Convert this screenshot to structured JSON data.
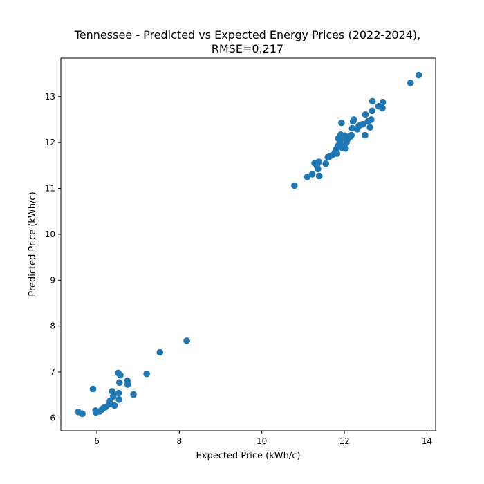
{
  "chart_data": {
    "type": "scatter",
    "title_line1": "Tennessee - Predicted vs Expected Energy Prices (2022-2024),",
    "title_line2": "RMSE=0.217",
    "xlabel": "Expected Price (kWh/c)",
    "ylabel": "Predicted Price (kWh/c)",
    "xlim": [
      5.13,
      14.21
    ],
    "ylim": [
      5.72,
      13.84
    ],
    "xticks": [
      6,
      8,
      10,
      12,
      14
    ],
    "yticks": [
      6,
      7,
      8,
      9,
      10,
      11,
      12,
      13
    ],
    "grid": false,
    "color": "#1f77b4",
    "points": [
      [
        5.55,
        6.13
      ],
      [
        5.65,
        6.09
      ],
      [
        5.91,
        6.63
      ],
      [
        5.97,
        6.16
      ],
      [
        5.98,
        6.12
      ],
      [
        6.07,
        6.14
      ],
      [
        6.12,
        6.18
      ],
      [
        6.17,
        6.22
      ],
      [
        6.22,
        6.24
      ],
      [
        6.3,
        6.3
      ],
      [
        6.32,
        6.37
      ],
      [
        6.37,
        6.58
      ],
      [
        6.4,
        6.47
      ],
      [
        6.43,
        6.27
      ],
      [
        6.52,
        6.98
      ],
      [
        6.53,
        6.54
      ],
      [
        6.54,
        6.4
      ],
      [
        6.55,
        6.77
      ],
      [
        6.57,
        6.93
      ],
      [
        6.74,
        6.81
      ],
      [
        6.75,
        6.73
      ],
      [
        6.89,
        6.51
      ],
      [
        7.21,
        6.96
      ],
      [
        7.53,
        7.43
      ],
      [
        8.18,
        7.68
      ],
      [
        10.79,
        11.06
      ],
      [
        11.1,
        11.25
      ],
      [
        11.22,
        11.31
      ],
      [
        11.28,
        11.55
      ],
      [
        11.34,
        11.49
      ],
      [
        11.36,
        11.42
      ],
      [
        11.38,
        11.58
      ],
      [
        11.39,
        11.27
      ],
      [
        11.55,
        11.54
      ],
      [
        11.6,
        11.68
      ],
      [
        11.63,
        11.69
      ],
      [
        11.7,
        11.72
      ],
      [
        11.77,
        11.78
      ],
      [
        11.8,
        11.85
      ],
      [
        11.82,
        11.76
      ],
      [
        11.84,
        11.92
      ],
      [
        11.85,
        12.09
      ],
      [
        11.88,
        11.97
      ],
      [
        11.89,
        12.02
      ],
      [
        11.91,
        12.17
      ],
      [
        11.93,
        12.43
      ],
      [
        11.95,
        11.88
      ],
      [
        11.97,
        12.1
      ],
      [
        11.99,
        11.92
      ],
      [
        12.01,
        12.15
      ],
      [
        12.03,
        11.87
      ],
      [
        12.05,
        12.0
      ],
      [
        12.07,
        12.06
      ],
      [
        12.1,
        12.1
      ],
      [
        12.14,
        12.13
      ],
      [
        12.17,
        12.16
      ],
      [
        12.19,
        12.31
      ],
      [
        12.21,
        12.46
      ],
      [
        12.23,
        12.5
      ],
      [
        12.31,
        12.29
      ],
      [
        12.35,
        12.36
      ],
      [
        12.4,
        12.39
      ],
      [
        12.45,
        12.4
      ],
      [
        12.5,
        12.16
      ],
      [
        12.51,
        12.61
      ],
      [
        12.57,
        12.46
      ],
      [
        12.62,
        12.33
      ],
      [
        12.65,
        12.5
      ],
      [
        12.67,
        12.69
      ],
      [
        12.68,
        12.9
      ],
      [
        12.83,
        12.79
      ],
      [
        12.92,
        12.75
      ],
      [
        12.93,
        12.88
      ],
      [
        13.6,
        13.3
      ],
      [
        13.8,
        13.47
      ]
    ]
  }
}
